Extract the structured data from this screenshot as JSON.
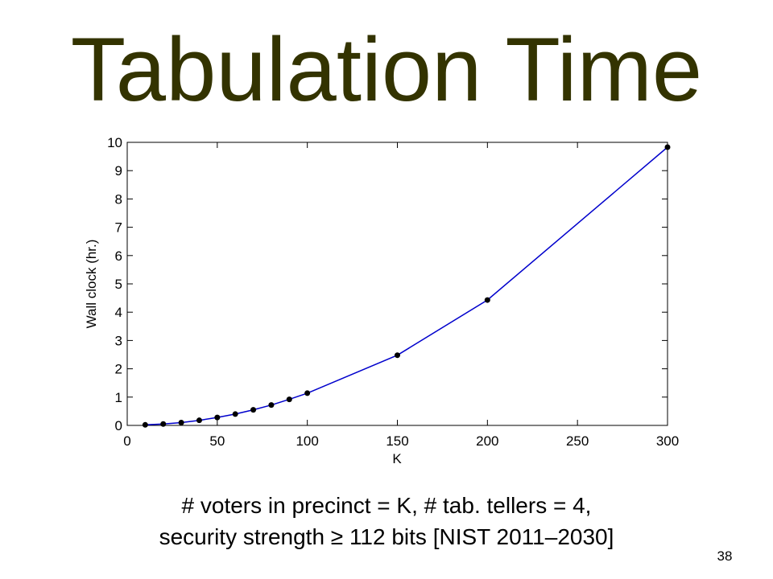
{
  "slide": {
    "title": "Tabulation Time",
    "caption_line1": "# voters in precinct = K, # tab. tellers = 4,",
    "caption_line2": "security strength ≥ 112 bits [NIST 2011–2030]",
    "page_number": "38"
  },
  "colors": {
    "title": "#333300",
    "line": "#0000cc",
    "marker": "#000000"
  },
  "chart_data": {
    "type": "line",
    "title": "",
    "xlabel": "K",
    "ylabel": "Wall clock (hr.)",
    "xlim": [
      0,
      300
    ],
    "ylim": [
      0,
      10
    ],
    "xticks": [
      0,
      50,
      100,
      150,
      200,
      250,
      300
    ],
    "yticks": [
      0,
      1,
      2,
      3,
      4,
      5,
      6,
      7,
      8,
      9,
      10
    ],
    "grid": false,
    "x": [
      10,
      20,
      30,
      40,
      50,
      60,
      70,
      80,
      90,
      100,
      150,
      200,
      300
    ],
    "y": [
      0.02,
      0.05,
      0.1,
      0.18,
      0.28,
      0.4,
      0.55,
      0.72,
      0.92,
      1.14,
      2.48,
      4.43,
      9.83
    ]
  }
}
